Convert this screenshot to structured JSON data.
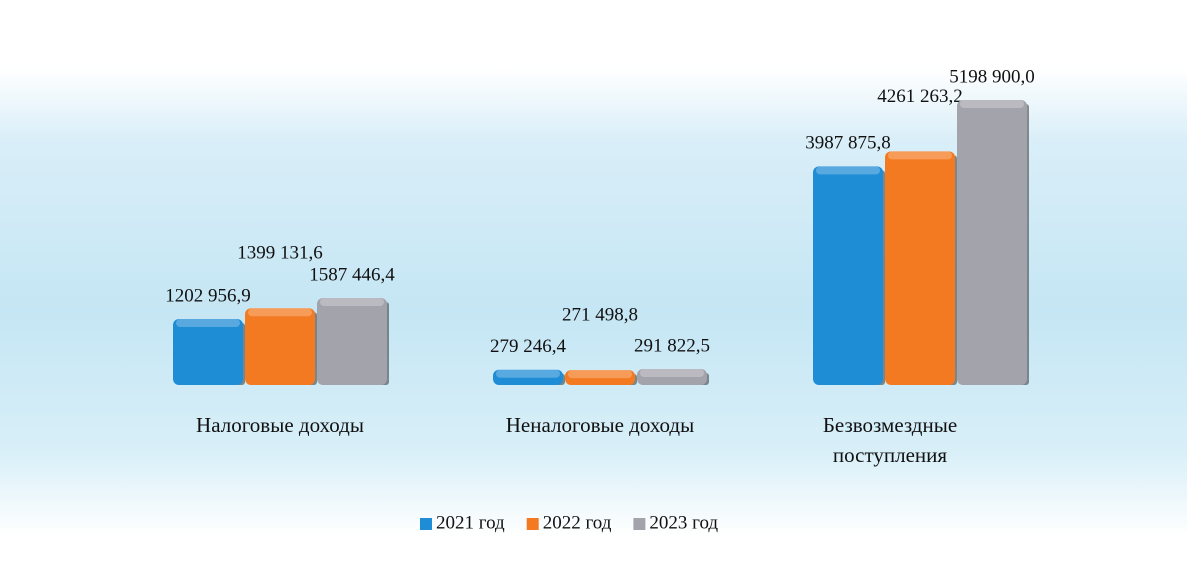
{
  "chart_data": {
    "type": "bar",
    "categories": [
      "Налоговые доходы",
      "Неналоговые доходы",
      "Безвозмездные поступления"
    ],
    "series": [
      {
        "name": "2021 год",
        "color": "#1f8dd6",
        "values": [
          1202956.9,
          279246.4,
          3987875.8
        ],
        "value_labels": [
          "1202 956,9",
          "279 246,4",
          "3987 875,8"
        ]
      },
      {
        "name": "2022 год",
        "color": "#f47a22",
        "values": [
          1399131.6,
          271498.8,
          4261263.2
        ],
        "value_labels": [
          "1399 131,6",
          "271 498,8",
          "4261 263,2"
        ]
      },
      {
        "name": "2023 год",
        "color": "#a3a3ab",
        "values": [
          1587446.4,
          291822.5,
          5198900.0
        ],
        "value_labels": [
          "1587 446,4",
          "291 822,5",
          "5198 900,0"
        ]
      }
    ],
    "legend": "bottom"
  }
}
